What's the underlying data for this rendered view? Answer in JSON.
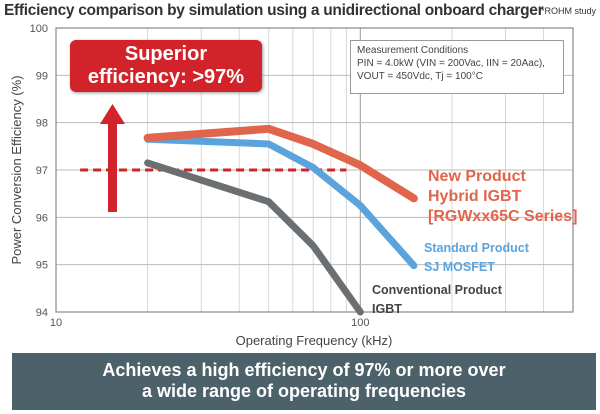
{
  "chart_data": {
    "type": "line",
    "title": "Efficiency comparison by simulation using a unidirectional onboard charger",
    "note": "*ROHM study",
    "xlabel": "Operating Frequency (kHz)",
    "ylabel": "Power Conversion Efficiency (%)",
    "x_scale": "log",
    "xlim": [
      10,
      500
    ],
    "ylim": [
      94,
      100
    ],
    "x_ticks": [
      "10",
      "100"
    ],
    "y_ticks": [
      "94",
      "95",
      "96",
      "97",
      "98",
      "99",
      "100"
    ],
    "grid": true,
    "series": [
      {
        "name": "New Product Hybrid IGBT [RGWxx65C Series]",
        "label_lines": [
          "New Product",
          "Hybrid IGBT",
          "[RGWxx65C Series]"
        ],
        "color": "#e0654a",
        "x": [
          20,
          50,
          70,
          100,
          150
        ],
        "y": [
          97.68,
          97.87,
          97.55,
          97.1,
          96.4
        ]
      },
      {
        "name": "Standard Product SJ MOSFET",
        "label_lines": [
          "Standard Product",
          "SJ MOSFET"
        ],
        "color": "#5aa3dc",
        "x": [
          20,
          50,
          70,
          100,
          150
        ],
        "y": [
          97.65,
          97.55,
          97.05,
          96.25,
          94.98
        ]
      },
      {
        "name": "Conventional Product IGBT",
        "label_lines": [
          "Conventional Product",
          "IGBT"
        ],
        "color": "#6b6f72",
        "x": [
          20,
          50,
          70,
          100
        ],
        "y": [
          97.15,
          96.33,
          95.4,
          94.0
        ]
      }
    ],
    "reference_line": {
      "y": 97,
      "x_range": [
        12,
        90
      ],
      "color": "#d2232a"
    },
    "callout": {
      "line1": "Superior",
      "line2": "efficiency: >97%"
    },
    "conditions": {
      "heading": "Measurement Conditions",
      "line1": "PIN = 4.0kW (VIN = 200Vac, IIN = 20Aac),",
      "line2": "VOUT = 450Vdc, Tj = 100°C"
    },
    "summary": {
      "line1": "Achieves a high efficiency of 97% or more over",
      "line2": "a wide range of operating frequencies"
    }
  }
}
